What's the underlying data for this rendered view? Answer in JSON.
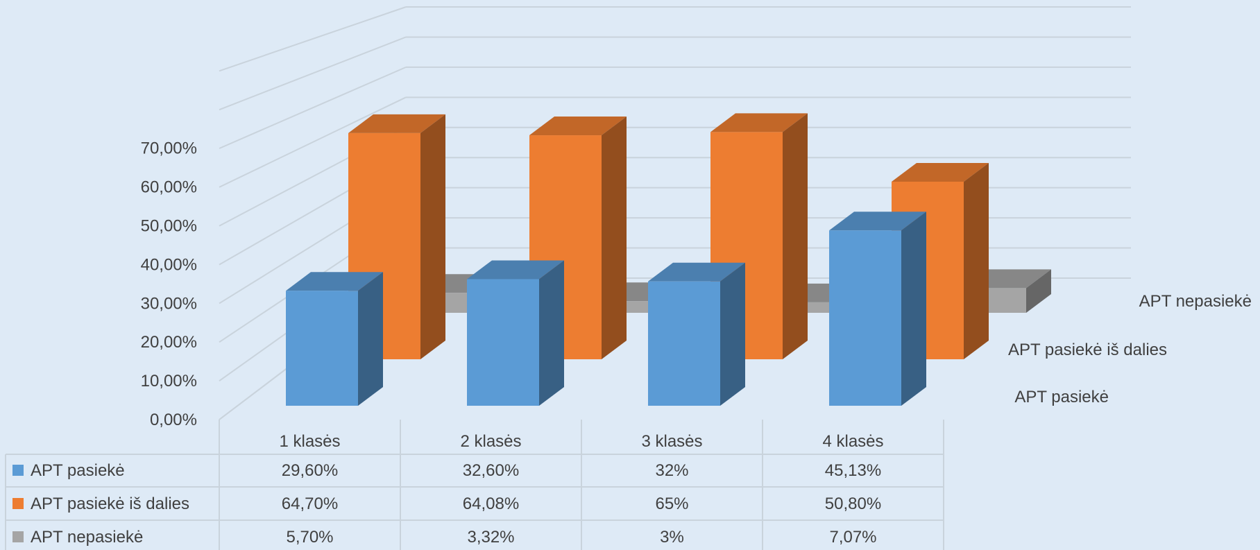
{
  "chart_data": {
    "type": "bar",
    "categories": [
      "1 klasės",
      "2 klasės",
      "3 klasės",
      "4 klasės"
    ],
    "series": [
      {
        "name": "APT pasiekė",
        "values": [
          29.6,
          32.6,
          32,
          45.13
        ],
        "display": [
          "29,60%",
          "32,60%",
          "32%",
          "45,13%"
        ],
        "color": "#5b9bd5"
      },
      {
        "name": "APT pasiekė iš dalies",
        "values": [
          64.7,
          64.08,
          65,
          50.8
        ],
        "display": [
          "64,70%",
          "64,08%",
          "65%",
          "50,80%"
        ],
        "color": "#ed7d31"
      },
      {
        "name": "APT nepasiekė",
        "values": [
          5.7,
          3.32,
          3,
          7.07
        ],
        "display": [
          "5,70%",
          "3,32%",
          "3%",
          "7,07%"
        ],
        "color": "#a5a5a5"
      }
    ],
    "yticks": [
      "0,00%",
      "10,00%",
      "20,00%",
      "30,00%",
      "40,00%",
      "50,00%",
      "60,00%",
      "70,00%"
    ],
    "ylim": [
      0,
      70
    ],
    "depth_axis": [
      "APT pasiekė",
      "APT pasiekė iš dalies",
      "APT nepasiekė"
    ],
    "data_table": true,
    "grid": true,
    "background": "#deeaf6"
  }
}
